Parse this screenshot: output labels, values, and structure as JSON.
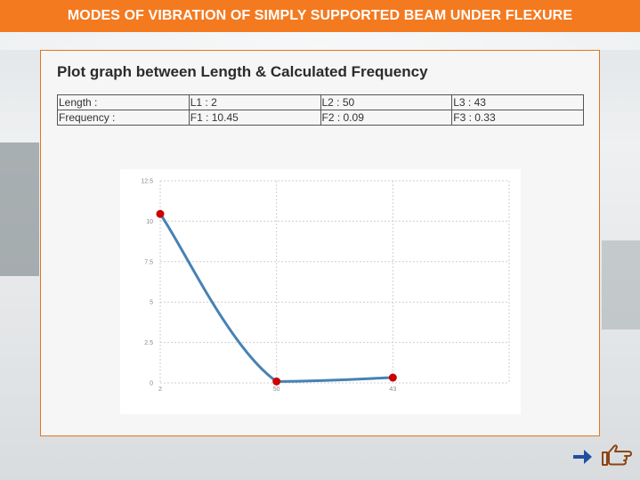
{
  "header": {
    "title": "MODES OF VIBRATION OF SIMPLY SUPPORTED BEAM UNDER FLEXURE"
  },
  "panel": {
    "title": "Plot graph between Length & Calculated Frequency"
  },
  "table": {
    "rows": [
      [
        "Length :",
        "L1 : 2",
        "L2 : 50",
        "L3 : 43"
      ],
      [
        "Frequency :",
        "F1 : 10.45",
        "F2 : 0.09",
        "F3 : 0.33"
      ]
    ]
  },
  "chart_data": {
    "type": "line",
    "title": "",
    "xlabel": "",
    "ylabel": "",
    "categories": [
      "2",
      "50",
      "43"
    ],
    "series": [
      {
        "name": "Frequency",
        "values": [
          10.45,
          0.09,
          0.33
        ],
        "color": "#4682b4",
        "point_color": "#cc0000"
      }
    ],
    "ylim": [
      0,
      12.5
    ],
    "yticks": [
      "0",
      "2.5",
      "5",
      "7.5",
      "10",
      "12.5"
    ],
    "grid": true
  },
  "nav": {
    "next_icon": "arrow-right-icon",
    "hand_icon": "pointing-hand-icon",
    "arrow_color": "#1f4fa0",
    "hand_color": "#8b4513"
  }
}
